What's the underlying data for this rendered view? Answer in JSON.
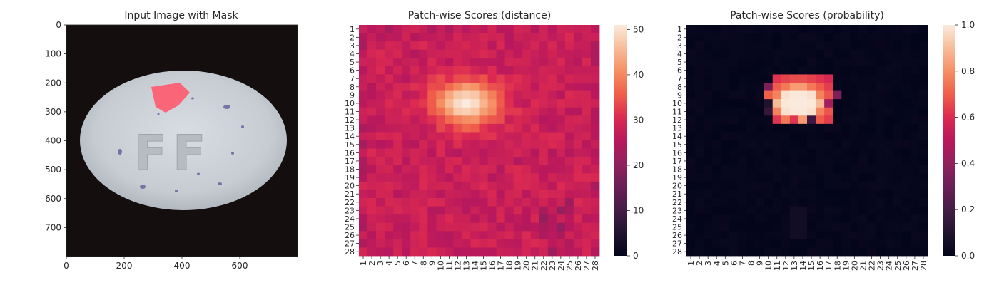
{
  "chart_data": [
    {
      "panel": "input-image",
      "type": "image",
      "title": "Input Image with Mask",
      "xticks": [
        0,
        200,
        400,
        600
      ],
      "yticks": [
        0,
        100,
        200,
        300,
        400,
        500,
        600,
        700
      ],
      "xlim": [
        0,
        800
      ],
      "ylim": [
        800,
        0
      ],
      "image_content": "white oval pill with embossed letters and blue specks on a black background",
      "embossed_text": "FF",
      "mask_color": "#ff5a6e"
    },
    {
      "panel": "distance-heatmap",
      "type": "heatmap",
      "title": "Patch-wise Scores (distance)",
      "rows": 28,
      "cols": 28,
      "colorbar": {
        "min": 0,
        "max": 51,
        "ticks": [
          0,
          10,
          20,
          30,
          40,
          50
        ],
        "colormap": "rocket"
      },
      "hotspot": {
        "center_row": 9.5,
        "center_col": 13,
        "peak_value": 51
      },
      "background_range": [
        20,
        34
      ]
    },
    {
      "panel": "probability-heatmap",
      "type": "heatmap",
      "title": "Patch-wise Scores (probability)",
      "rows": 28,
      "cols": 28,
      "colorbar": {
        "min": 0,
        "max": 1,
        "ticks": [
          "0.0",
          "0.2",
          "0.4",
          "0.6",
          "0.8",
          "1.0"
        ],
        "colormap": "rocket"
      },
      "hotspot": {
        "center_row": 9.5,
        "center_col": 13.5,
        "peak_value": 1.0
      },
      "background_value": 0.02
    }
  ]
}
